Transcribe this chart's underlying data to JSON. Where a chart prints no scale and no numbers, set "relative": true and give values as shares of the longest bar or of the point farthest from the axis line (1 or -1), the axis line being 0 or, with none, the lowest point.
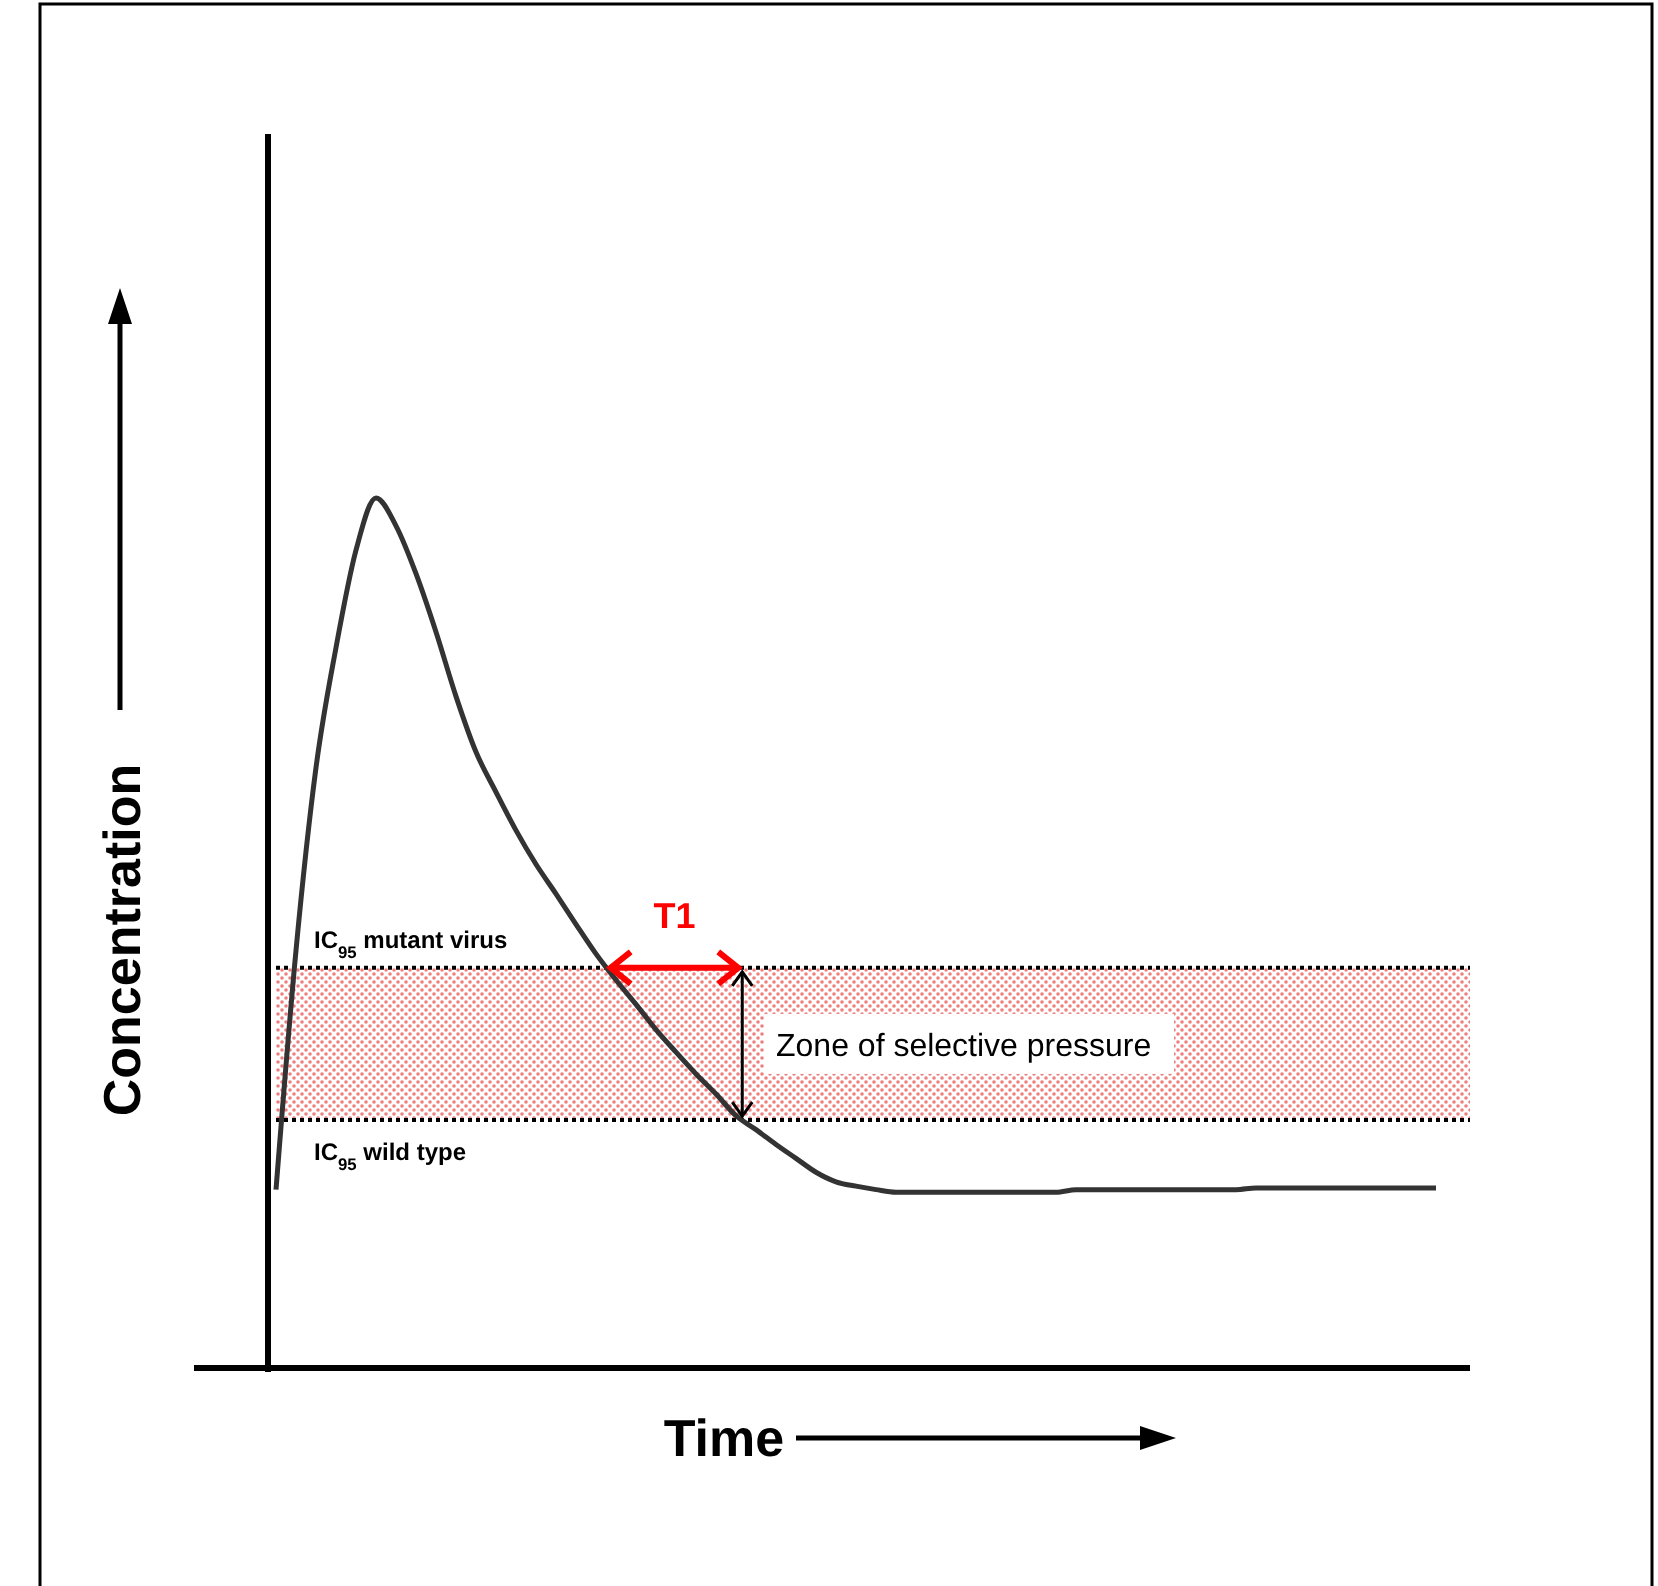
{
  "chart_data": {
    "type": "line",
    "relative": true,
    "xlabel": "Time",
    "ylabel": "Concentration",
    "categories": [
      null,
      null,
      null,
      null,
      null,
      null,
      null,
      null,
      null,
      null,
      null,
      null,
      null,
      null,
      null,
      null,
      null,
      null,
      null,
      null,
      null,
      null,
      null,
      null,
      null,
      null,
      null,
      null,
      null,
      null,
      null,
      null,
      null,
      null,
      null,
      null,
      null,
      null,
      null,
      null,
      null,
      null,
      null,
      null,
      null,
      null,
      null,
      null,
      null,
      null,
      null,
      null,
      null,
      null,
      null,
      null,
      null,
      null,
      null
    ],
    "series": [
      {
        "color": "#333333",
        "values": [
          0.205,
          0.48,
          0.69,
          0.828,
          0.94,
          1,
          0.968,
          0.913,
          0.846,
          0.772,
          0.708,
          0.662,
          0.618,
          0.579,
          0.545,
          0.51,
          0.476,
          0.446,
          0.418,
          0.389,
          0.363,
          0.338,
          0.315,
          0.29,
          0.274,
          0.257,
          0.241,
          0.225,
          0.214,
          0.209,
          0.205,
          0.202,
          0.202,
          0.202,
          0.202,
          0.202,
          0.202,
          0.202,
          0.202,
          0.202,
          0.205,
          0.205,
          0.205,
          0.205,
          0.205,
          0.205,
          0.205,
          0.205,
          0.205,
          0.207,
          0.207,
          0.207,
          0.207,
          0.207,
          0.207,
          0.207,
          0.207,
          0.207,
          0.207
        ]
      }
    ],
    "bands": [
      {
        "axis": "y",
        "from": 0.285,
        "to": 0.46,
        "label": "Zone of selective pressure",
        "color": "#f08080"
      }
    ],
    "ref_lines": [
      {
        "axis": "y",
        "value": 0.46,
        "label": "IC$_{95}$ mutant virus",
        "line_style": "dotted",
        "color": "#000000"
      },
      {
        "axis": "y",
        "value": 0.285,
        "label": "IC$_{95}$ wild type",
        "line_style": "dotted",
        "color": "#000000"
      }
    ],
    "annotations": [
      "T1"
    ],
    "line_style": "solid",
    "marker": "none",
    "grid": false
  }
}
